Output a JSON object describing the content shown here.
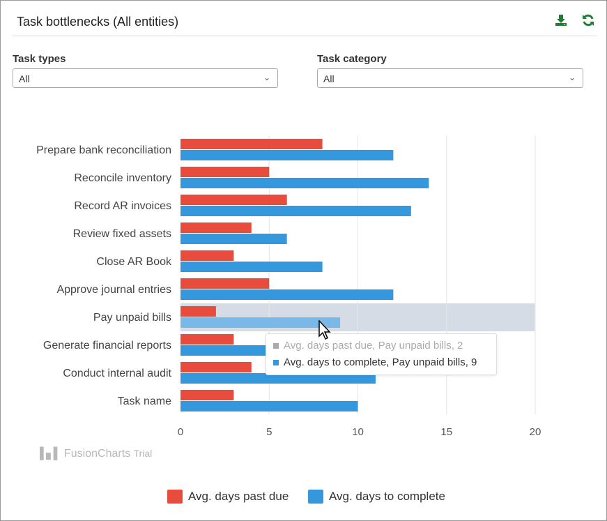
{
  "header": {
    "title": "Task bottlenecks (All entities)",
    "download_icon": "download-icon",
    "refresh_icon": "refresh-icon"
  },
  "filters": [
    {
      "label": "Task types",
      "value": "All"
    },
    {
      "label": "Task category",
      "value": "All"
    }
  ],
  "colors": {
    "past_due": "#e84c3d",
    "complete": "#3598dc",
    "accent": "#1e7e34"
  },
  "chart_data": {
    "type": "bar",
    "orientation": "horizontal",
    "categories": [
      "Prepare bank reconciliation",
      "Reconcile inventory",
      "Record AR invoices",
      "Review fixed assets",
      "Close AR Book",
      "Approve journal entries",
      "Pay unpaid bills",
      "Generate financial reports",
      "Conduct internal audit",
      "Task name"
    ],
    "series": [
      {
        "name": "Avg. days past due",
        "values": [
          8,
          5,
          6,
          4,
          3,
          5,
          2,
          3,
          4,
          3
        ]
      },
      {
        "name": "Avg. days to complete",
        "values": [
          12,
          14,
          13,
          6,
          8,
          12,
          9,
          null,
          11,
          10
        ]
      }
    ],
    "xlim": [
      0,
      20
    ],
    "x_ticks": [
      "0",
      "5",
      "10",
      "15",
      "20"
    ],
    "grid": true,
    "legend": "bottom",
    "highlighted_category": "Pay unpaid bills"
  },
  "tooltip": {
    "line1": "Avg. days past due, Pay unpaid bills, 2",
    "line2": "Avg. days to complete, Pay unpaid bills, 9"
  },
  "watermark": {
    "brand": "FusionCharts",
    "suffix": "Trial"
  }
}
